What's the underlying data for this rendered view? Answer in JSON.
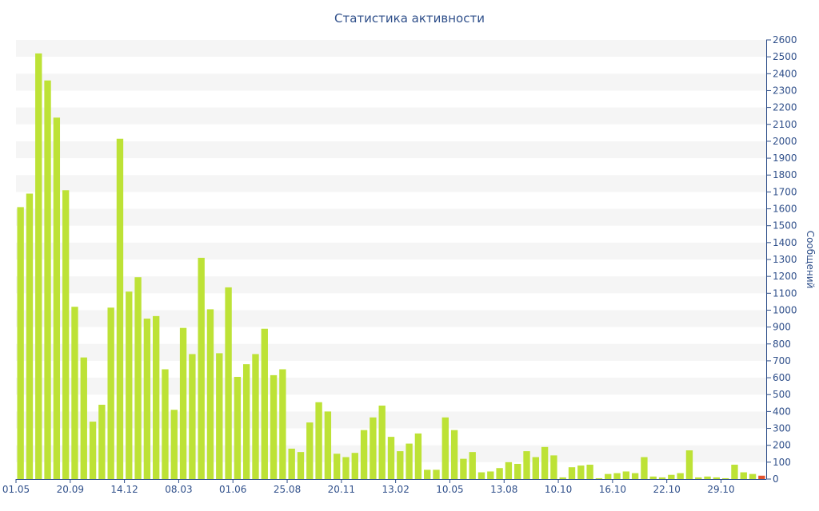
{
  "chart_data": {
    "type": "bar",
    "title": "Статистика активности",
    "ylabel": "Сообщений",
    "xlabel": "",
    "ylim": [
      0,
      2600
    ],
    "y_ticks": [
      0,
      100,
      200,
      300,
      400,
      500,
      600,
      700,
      800,
      900,
      1000,
      1100,
      1200,
      1300,
      1400,
      1500,
      1600,
      1700,
      1800,
      1900,
      2000,
      2100,
      2200,
      2300,
      2400,
      2500,
      2600
    ],
    "y_axis_side": "right",
    "grid": "alternating horizontal bands",
    "x_tick_labels": [
      {
        "index": 0,
        "label": "01.05"
      },
      {
        "index": 6,
        "label": "20.09"
      },
      {
        "index": 12,
        "label": "14.12"
      },
      {
        "index": 18,
        "label": "08.03"
      },
      {
        "index": 24,
        "label": "01.06"
      },
      {
        "index": 30,
        "label": "25.08"
      },
      {
        "index": 36,
        "label": "20.11"
      },
      {
        "index": 42,
        "label": "13.02"
      },
      {
        "index": 48,
        "label": "10.05"
      },
      {
        "index": 54,
        "label": "13.08"
      },
      {
        "index": 60,
        "label": "10.10"
      },
      {
        "index": 66,
        "label": "16.10"
      },
      {
        "index": 72,
        "label": "22.10"
      },
      {
        "index": 78,
        "label": "29.10"
      }
    ],
    "values": [
      1610,
      1690,
      2520,
      2360,
      2140,
      1710,
      1020,
      720,
      340,
      440,
      1015,
      2015,
      1110,
      1195,
      950,
      965,
      650,
      410,
      895,
      740,
      1310,
      1005,
      745,
      1135,
      605,
      680,
      740,
      890,
      615,
      650,
      180,
      160,
      335,
      455,
      400,
      150,
      130,
      155,
      290,
      365,
      435,
      250,
      165,
      210,
      270,
      55,
      55,
      365,
      290,
      120,
      160,
      40,
      45,
      65,
      100,
      90,
      165,
      130,
      190,
      140,
      10,
      70,
      80,
      85,
      5,
      30,
      35,
      45,
      35,
      130,
      15,
      10,
      25,
      35,
      170,
      10,
      15,
      10,
      5,
      85,
      40,
      30,
      20
    ],
    "bar_color": "#bde236",
    "highlight_color": "#e2542f",
    "highlight_index": 82
  }
}
